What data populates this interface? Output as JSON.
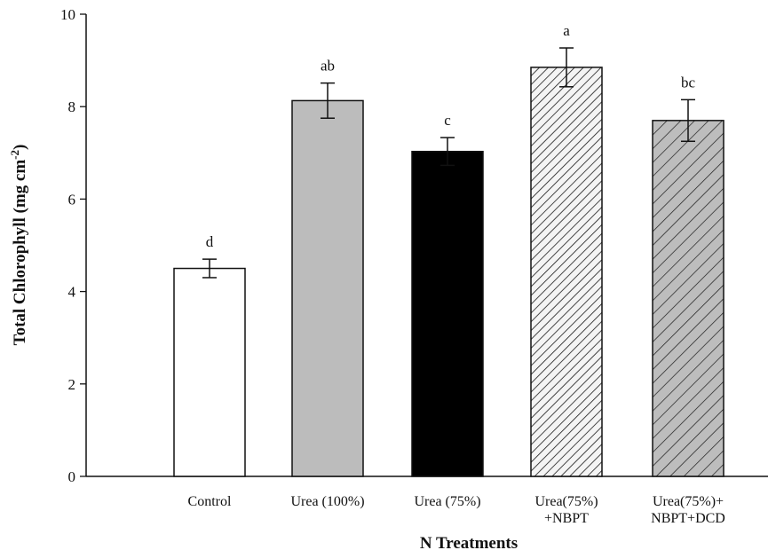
{
  "chart_data": {
    "type": "bar",
    "title": "",
    "xlabel": "N Treatments",
    "ylabel": {
      "main": "Total Chlorophyll (mg cm",
      "superscript": "-2",
      "close": ")"
    },
    "ylim": [
      0,
      10
    ],
    "yticks": [
      0,
      2,
      4,
      6,
      8,
      10
    ],
    "grid": false,
    "legend": "none",
    "categories": [
      [
        "Control"
      ],
      [
        "Urea (100%)"
      ],
      [
        "Urea (75%)"
      ],
      [
        "Urea(75%)",
        "+NBPT"
      ],
      [
        "Urea(75%)+",
        "NBPT+DCD"
      ]
    ],
    "values": [
      4.5,
      8.13,
      7.03,
      8.85,
      7.7
    ],
    "errors": [
      0.2,
      0.38,
      0.3,
      0.42,
      0.45
    ],
    "significance": [
      "d",
      "ab",
      "c",
      "a",
      "bc"
    ],
    "fills": [
      "white",
      "gray",
      "black",
      "hatch-light",
      "hatch-gray"
    ],
    "colors": {
      "gray": "#bcbcbc",
      "black": "#000000",
      "hatch_bg_light": "#f4f4f4",
      "hatch_bg_gray": "#bdbdbd",
      "hatch_line": "#1a1a1a",
      "axis": "#111111"
    }
  }
}
